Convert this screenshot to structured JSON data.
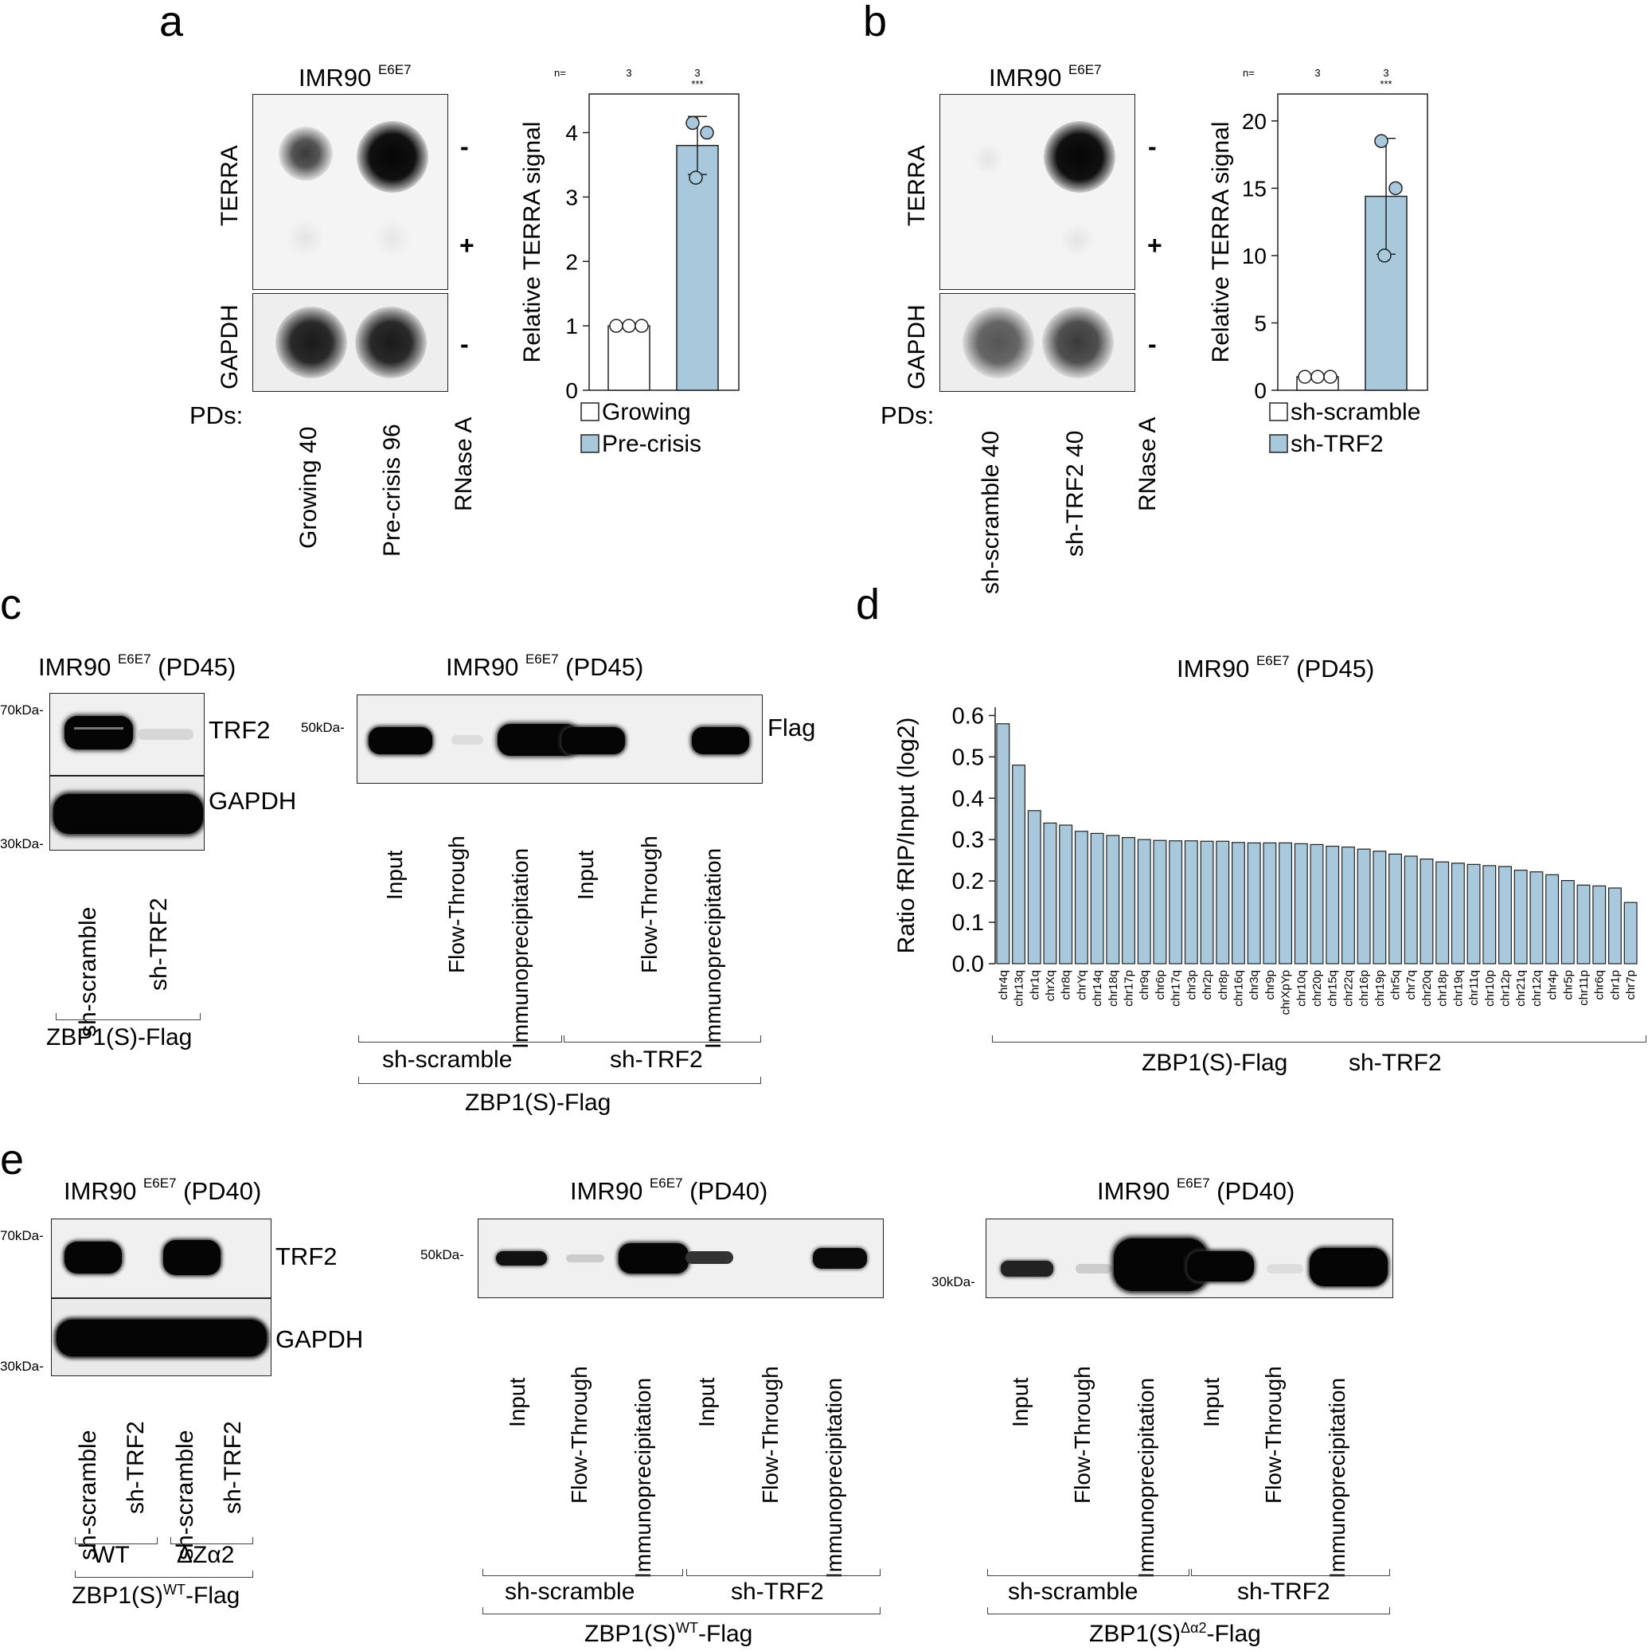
{
  "panel_labels": [
    "a",
    "b",
    "c",
    "d",
    "e"
  ],
  "panel_a": {
    "title": "IMR90",
    "title_sup": "E6E7",
    "row_labels": [
      "TERRA",
      "GAPDH"
    ],
    "signs": [
      "-",
      "+",
      "-"
    ],
    "pds_label": "PDs:",
    "lanes": [
      "Growing  40",
      "Pre-crisis  96",
      "RNase A"
    ]
  },
  "panel_b": {
    "title": "IMR90",
    "title_sup": "E6E7",
    "row_labels": [
      "TERRA",
      "GAPDH"
    ],
    "signs": [
      "-",
      "+",
      "-"
    ],
    "pds_label": "PDs:",
    "lanes": [
      "sh-scramble  40",
      "sh-TRF2  40",
      "RNase A"
    ]
  },
  "panel_c": {
    "left_title": "IMR90",
    "left_title_sup": "E6E7",
    "left_title_tail": "(PD45)",
    "left_markers": [
      "70kDa-",
      "30kDa-"
    ],
    "left_bands": [
      "TRF2",
      "GAPDH"
    ],
    "left_lanes": [
      "sh-scramble",
      "sh-TRF2"
    ],
    "left_group": "ZBP1(S)-Flag",
    "right_title": "IMR90",
    "right_title_sup": "E6E7",
    "right_title_tail": "(PD45)",
    "right_marker": "50kDa-",
    "right_band": "Flag",
    "right_lanes": [
      "Input",
      "Flow-Through",
      "Immunoprecipitation",
      "Input",
      "Flow-Through",
      "Immunoprecipitation"
    ],
    "right_groups": [
      "sh-scramble",
      "sh-TRF2"
    ],
    "right_group_main": "ZBP1(S)-Flag"
  },
  "panel_d": {
    "title": "IMR90",
    "title_sup": "E6E7",
    "title_tail": "(PD45)",
    "group_left": "ZBP1(S)-Flag",
    "group_right": "sh-TRF2"
  },
  "panel_e": {
    "left_title": "IMR90",
    "left_title_sup": "E6E7",
    "left_title_tail": "(PD40)",
    "left_markers": [
      "70kDa-",
      "30kDa-"
    ],
    "left_bands": [
      "TRF2",
      "GAPDH"
    ],
    "left_lanes": [
      "sh-scramble",
      "sh-TRF2",
      "sh-scramble",
      "sh-TRF2"
    ],
    "left_subgroups": [
      "WT",
      "ΔZα2"
    ],
    "left_group": "ZBP1(S)",
    "left_group_sup": "WT",
    "left_group_tail": "-Flag",
    "mid_title": "IMR90",
    "mid_title_sup": "E6E7",
    "mid_title_tail": "(PD40)",
    "mid_marker": "50kDa-",
    "mid_lanes": [
      "Input",
      "Flow-Through",
      "Immunoprecipitation",
      "Input",
      "Flow-Through",
      "Immunoprecipitation"
    ],
    "mid_groups": [
      "sh-scramble",
      "sh-TRF2"
    ],
    "mid_group_main": "ZBP1(S)",
    "mid_group_sup": "WT",
    "mid_group_tail": "-Flag",
    "right_title": "IMR90",
    "right_title_sup": "E6E7",
    "right_title_tail": "(PD40)",
    "right_marker": "30kDa-",
    "right_lanes": [
      "Input",
      "Flow-Through",
      "Immunoprecipitation",
      "Input",
      "Flow-Through",
      "Immunoprecipitation"
    ],
    "right_groups": [
      "sh-scramble",
      "sh-TRF2"
    ],
    "right_group_main": "ZBP1(S)",
    "right_group_sup": "Δα2",
    "right_group_tail": "-Flag"
  },
  "colors": {
    "bar_fill": "#a8c8dc",
    "bar_edge": "#222222",
    "blot_bg": "#f0f0f0"
  },
  "chart_data": [
    {
      "id": "a_bar",
      "type": "bar",
      "categories": [
        "Growing",
        "Pre-crisis"
      ],
      "values": [
        1.0,
        3.8
      ],
      "errors": [
        0.0,
        0.45
      ],
      "points": [
        [
          1.0,
          1.0,
          1.0
        ],
        [
          4.15,
          4.0,
          3.3
        ]
      ],
      "n_label": "n=",
      "n": [
        "3",
        "3"
      ],
      "sig": [
        "",
        "***"
      ],
      "ylabel": "Relative TERRA signal",
      "ylim": [
        0,
        4.6
      ],
      "yticks": [
        0,
        1,
        2,
        3,
        4
      ],
      "legend": [
        "Growing",
        "Pre-crisis"
      ]
    },
    {
      "id": "b_bar",
      "type": "bar",
      "categories": [
        "sh-scramble",
        "sh-TRF2"
      ],
      "values": [
        1.0,
        14.4
      ],
      "errors": [
        0.0,
        4.3
      ],
      "points": [
        [
          1.0,
          1.0,
          1.0
        ],
        [
          18.5,
          15.0,
          10.0
        ]
      ],
      "n_label": "n=",
      "n": [
        "3",
        "3"
      ],
      "sig": [
        "",
        "***"
      ],
      "ylabel": "Relative TERRA signal",
      "ylim": [
        0,
        22
      ],
      "yticks": [
        0,
        5,
        10,
        15,
        20
      ],
      "legend": [
        "sh-scramble",
        "sh-TRF2"
      ]
    },
    {
      "id": "d_bar",
      "type": "bar",
      "categories": [
        "chr4q",
        "chr13q",
        "chr1q",
        "chrXq",
        "chr8q",
        "chrYq",
        "chr14q",
        "chr18q",
        "chr17p",
        "chr9q",
        "chr6p",
        "chr17q",
        "chr3p",
        "chr2p",
        "chr8p",
        "chr16q",
        "chr3q",
        "chr9p",
        "chrXpYp",
        "chr10q",
        "chr20p",
        "chr15q",
        "chr22q",
        "chr16p",
        "chr19p",
        "chr5q",
        "chr7q",
        "chr20q",
        "chr18p",
        "chr19q",
        "chr11q",
        "chr10p",
        "chr12p",
        "chr21q",
        "chr12q",
        "chr4p",
        "chr5p",
        "chr11p",
        "chr6q",
        "chr1p",
        "chr7p"
      ],
      "values": [
        0.58,
        0.48,
        0.37,
        0.34,
        0.335,
        0.32,
        0.315,
        0.31,
        0.305,
        0.3,
        0.298,
        0.297,
        0.297,
        0.296,
        0.296,
        0.293,
        0.292,
        0.292,
        0.292,
        0.29,
        0.288,
        0.284,
        0.282,
        0.277,
        0.272,
        0.265,
        0.26,
        0.253,
        0.246,
        0.243,
        0.24,
        0.237,
        0.235,
        0.226,
        0.222,
        0.215,
        0.201,
        0.19,
        0.188,
        0.183,
        0.148
      ],
      "ylabel": "Ratio fRIP/Input (log2)",
      "ylim": [
        0,
        0.62
      ],
      "yticks": [
        0.0,
        0.1,
        0.2,
        0.3,
        0.4,
        0.5,
        0.6
      ]
    }
  ]
}
